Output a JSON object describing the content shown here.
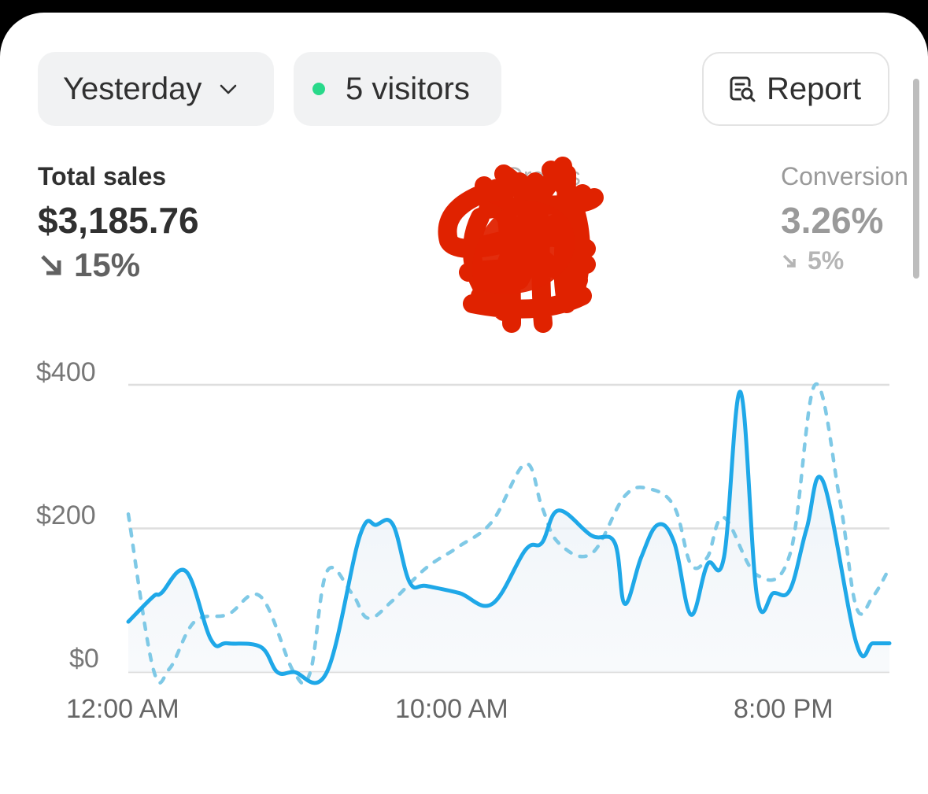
{
  "filters": {
    "date_label": "Yesterday",
    "visitors_label": "5 visitors",
    "report_label": "Report"
  },
  "metrics": {
    "sales": {
      "label": "Total sales",
      "value": "$3,185.76",
      "change": "15%",
      "direction": "down"
    },
    "orders": {
      "label": "Orders"
    },
    "conversion": {
      "label": "Conversion",
      "value": "3.26%",
      "change": "5%",
      "direction": "down"
    }
  },
  "colors": {
    "accent": "#1fa8e8",
    "comparison": "#7fc9e6",
    "status_dot": "#29d98a"
  },
  "icons": {
    "date_chevron": "chevron-down-icon",
    "report": "report-search-icon",
    "trend": "arrow-down-right-icon"
  },
  "chart_data": {
    "type": "line",
    "ylim": [
      0,
      400
    ],
    "y_ticks": [
      "$400",
      "$200",
      "$0"
    ],
    "x_ticks": [
      "12:00 AM",
      "10:00 AM",
      "8:00 PM"
    ],
    "x_range_hours": [
      0,
      23
    ],
    "series": [
      {
        "style": "solid",
        "x": [
          0,
          0.75,
          1,
          1.75,
          2.5,
          3,
          4,
          4.5,
          5,
          6,
          7,
          7.5,
          8,
          8.5,
          9,
          10,
          11,
          12,
          12.5,
          13,
          14,
          14.7,
          15,
          15.5,
          16,
          16.5,
          17,
          17.5,
          18,
          18.5,
          19,
          19.5,
          20,
          20.5,
          21,
          22,
          22.5,
          23
        ],
        "values": [
          70,
          105,
          110,
          140,
          45,
          40,
          35,
          0,
          0,
          0,
          190,
          205,
          205,
          125,
          120,
          110,
          95,
          170,
          180,
          225,
          190,
          180,
          95,
          160,
          205,
          180,
          80,
          150,
          160,
          390,
          105,
          110,
          115,
          200,
          265,
          40,
          40,
          40
        ]
      },
      {
        "style": "dashed",
        "x": [
          0,
          0.75,
          1.25,
          2,
          3,
          4,
          5,
          5.5,
          6,
          6.75,
          7.25,
          8,
          9,
          10,
          11,
          12,
          12.5,
          13,
          14,
          15,
          15.75,
          16.5,
          17,
          17.5,
          18,
          19,
          20,
          20.75,
          21.5,
          22,
          22.5,
          23
        ],
        "values": [
          220,
          5,
          5,
          70,
          80,
          105,
          0,
          0,
          140,
          110,
          75,
          100,
          145,
          175,
          210,
          290,
          230,
          180,
          165,
          245,
          255,
          230,
          150,
          160,
          215,
          135,
          165,
          400,
          240,
          90,
          105,
          145
        ]
      }
    ]
  }
}
